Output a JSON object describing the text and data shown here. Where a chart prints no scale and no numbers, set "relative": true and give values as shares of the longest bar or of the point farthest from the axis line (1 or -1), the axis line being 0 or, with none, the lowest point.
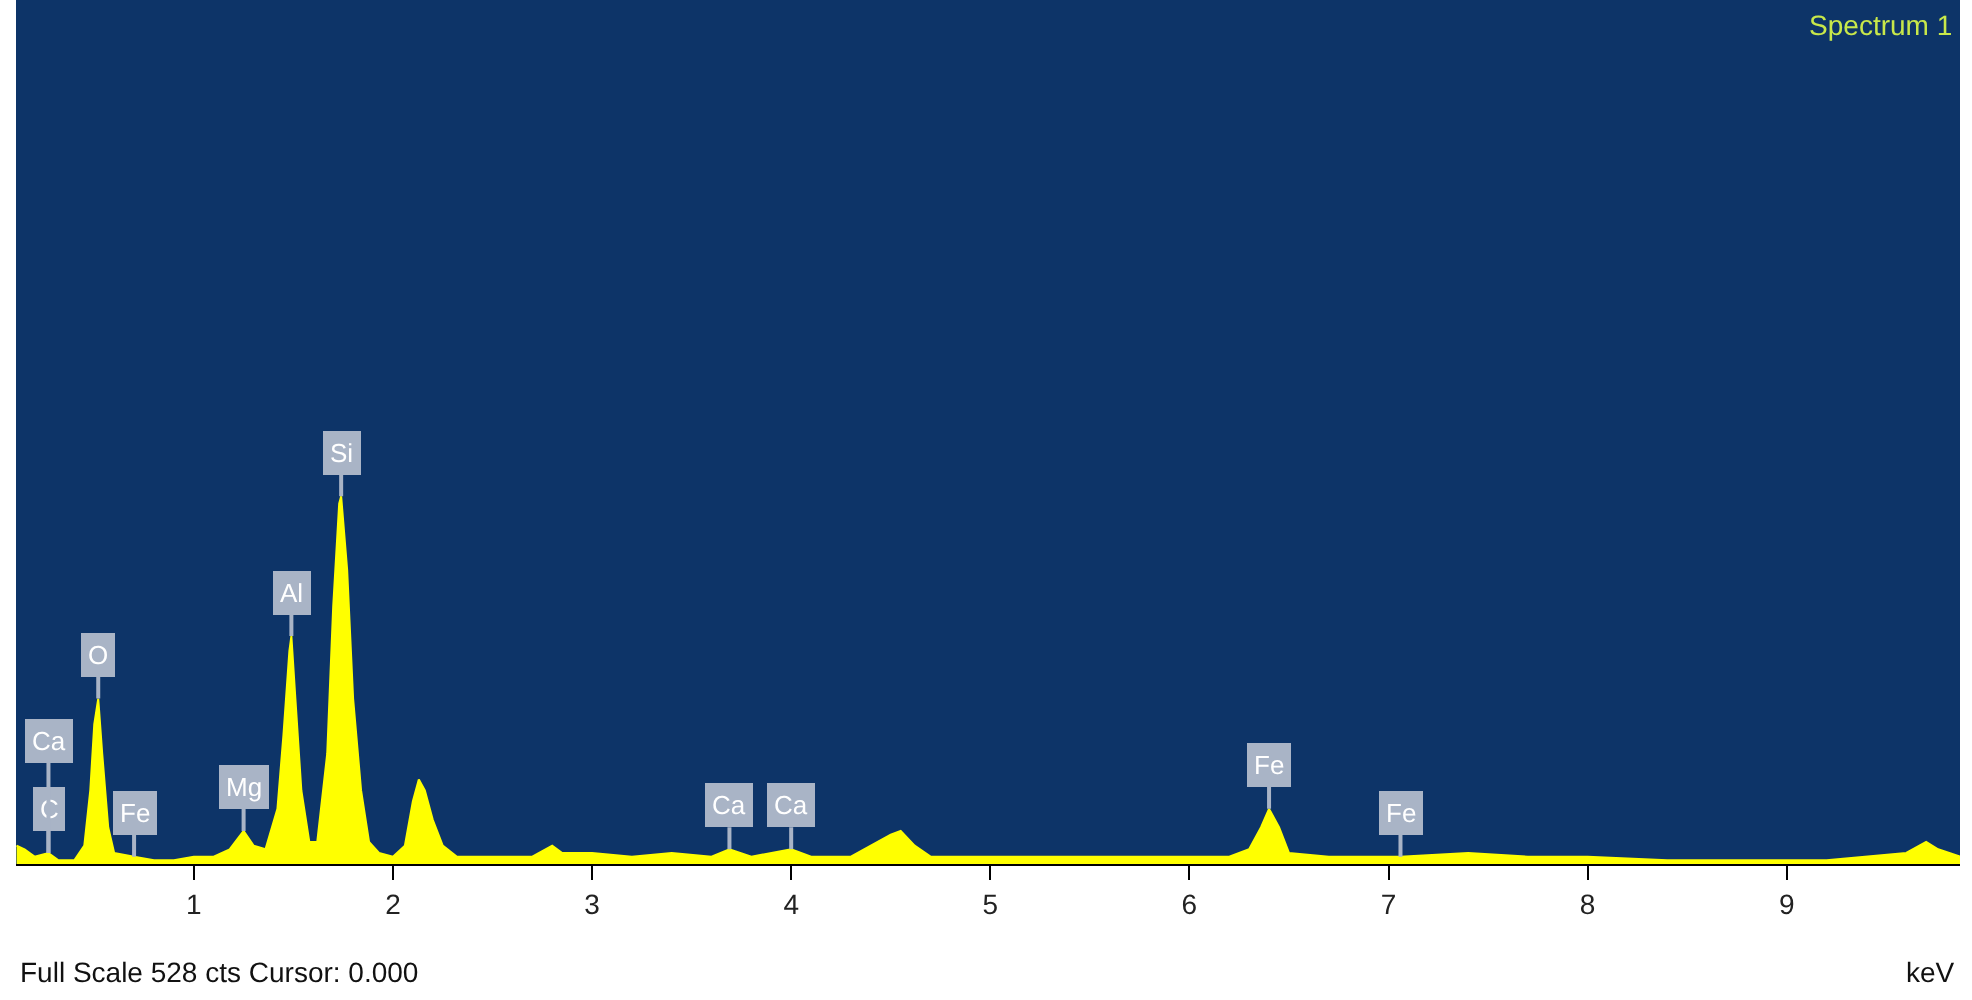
{
  "chart_data": {
    "type": "area",
    "title": "Spectrum 1",
    "xlabel": "keV",
    "relative": true,
    "x": [
      0.11,
      0.15,
      0.2,
      0.27,
      0.32,
      0.4,
      0.45,
      0.48,
      0.5,
      0.52,
      0.54,
      0.57,
      0.6,
      0.7,
      0.8,
      0.9,
      1.0,
      1.1,
      1.18,
      1.25,
      1.3,
      1.36,
      1.42,
      1.45,
      1.48,
      1.49,
      1.51,
      1.54,
      1.58,
      1.62,
      1.67,
      1.7,
      1.73,
      1.74,
      1.77,
      1.8,
      1.84,
      1.88,
      1.93,
      2.0,
      2.06,
      2.1,
      2.13,
      2.16,
      2.2,
      2.25,
      2.32,
      2.5,
      2.7,
      2.8,
      2.85,
      3.0,
      3.2,
      3.4,
      3.6,
      3.69,
      3.8,
      4.0,
      4.1,
      4.3,
      4.4,
      4.5,
      4.55,
      4.62,
      4.7,
      5.0,
      5.3,
      5.6,
      5.9,
      6.2,
      6.3,
      6.36,
      6.4,
      6.45,
      6.5,
      6.7,
      7.06,
      7.4,
      7.7,
      8.0,
      8.4,
      8.8,
      9.2,
      9.6,
      9.7,
      9.76,
      9.87
    ],
    "series": [
      {
        "color": "#ffff00",
        "values": [
          0.05,
          0.04,
          0.02,
          0.03,
          0.01,
          0.01,
          0.05,
          0.2,
          0.38,
          0.45,
          0.3,
          0.1,
          0.03,
          0.02,
          0.01,
          0.01,
          0.02,
          0.02,
          0.04,
          0.09,
          0.05,
          0.04,
          0.15,
          0.35,
          0.58,
          0.62,
          0.45,
          0.2,
          0.06,
          0.06,
          0.3,
          0.7,
          0.98,
          1.0,
          0.8,
          0.45,
          0.2,
          0.06,
          0.03,
          0.02,
          0.05,
          0.17,
          0.23,
          0.2,
          0.12,
          0.05,
          0.02,
          0.02,
          0.02,
          0.05,
          0.03,
          0.03,
          0.02,
          0.03,
          0.02,
          0.04,
          0.02,
          0.04,
          0.02,
          0.02,
          0.05,
          0.08,
          0.09,
          0.05,
          0.02,
          0.02,
          0.02,
          0.02,
          0.02,
          0.02,
          0.04,
          0.1,
          0.15,
          0.1,
          0.03,
          0.02,
          0.02,
          0.03,
          0.02,
          0.02,
          0.01,
          0.01,
          0.01,
          0.03,
          0.06,
          0.04,
          0.02
        ]
      }
    ],
    "xlim": [
      0.107,
      9.87
    ],
    "xticks": [
      1,
      2,
      3,
      4,
      5,
      6,
      7,
      8,
      9
    ],
    "grid": false,
    "legend": false,
    "annotations": [
      {
        "text": "C",
        "x": 0.27,
        "y": 0.03
      },
      {
        "text": "Ca",
        "x": 0.27,
        "y": 0.03
      },
      {
        "text": "O",
        "x": 0.52,
        "y": 0.45
      },
      {
        "text": "Fe",
        "x": 0.7,
        "y": 0.02
      },
      {
        "text": "Mg",
        "x": 1.25,
        "y": 0.09
      },
      {
        "text": "Al",
        "x": 1.49,
        "y": 0.62
      },
      {
        "text": "Si",
        "x": 1.74,
        "y": 1.0
      },
      {
        "text": "Ca",
        "x": 3.69,
        "y": 0.04
      },
      {
        "text": "Ca",
        "x": 4.0,
        "y": 0.04
      },
      {
        "text": "Fe",
        "x": 6.4,
        "y": 0.15
      },
      {
        "text": "Fe",
        "x": 7.06,
        "y": 0.02
      },
      "Full Scale 528 cts Cursor: 0.000"
    ]
  }
}
